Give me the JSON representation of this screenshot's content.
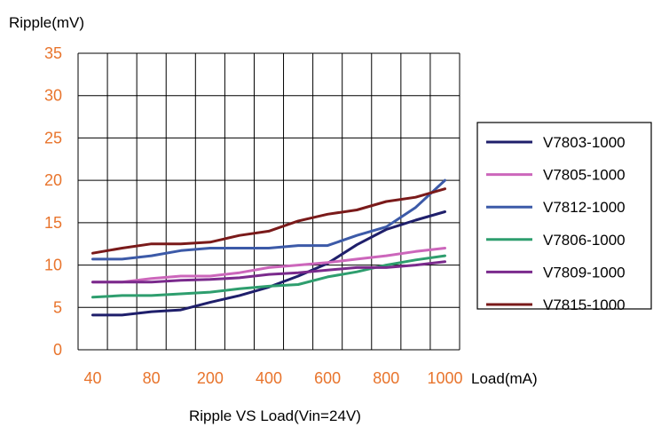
{
  "chart_data": {
    "type": "line",
    "title": "Ripple VS Load(Vin=24V)",
    "ylabel": "Ripple(mV)",
    "xlabel": "Load(mA)",
    "categories": [
      "40",
      "",
      "80",
      "",
      "200",
      "",
      "400",
      "",
      "600",
      "",
      "800",
      "",
      "1000"
    ],
    "yticks": [
      "0",
      "5",
      "10",
      "15",
      "20",
      "25",
      "30",
      "35"
    ],
    "ylim": [
      0,
      35
    ],
    "grid": true,
    "legend_position": "right",
    "tick_color": "#e8742c",
    "series": [
      {
        "name": "V7803-1000",
        "color": "#1f1f6b",
        "values": [
          4.1,
          4.1,
          4.5,
          4.7,
          5.6,
          6.4,
          7.4,
          8.7,
          10.2,
          12.4,
          14.2,
          15.3,
          16.3
        ]
      },
      {
        "name": "V7805-1000",
        "color": "#cc66bb",
        "values": [
          8.0,
          8.0,
          8.4,
          8.7,
          8.7,
          9.1,
          9.7,
          10.0,
          10.3,
          10.7,
          11.1,
          11.6,
          12.0
        ]
      },
      {
        "name": "V7812-1000",
        "color": "#3c5aa8",
        "values": [
          10.7,
          10.7,
          11.1,
          11.7,
          12.0,
          12.0,
          12.0,
          12.3,
          12.3,
          13.5,
          14.5,
          16.8,
          20.0
        ]
      },
      {
        "name": "V7806-1000",
        "color": "#2e9e6e",
        "values": [
          6.2,
          6.4,
          6.4,
          6.6,
          6.8,
          7.2,
          7.5,
          7.7,
          8.6,
          9.2,
          10.0,
          10.6,
          11.1
        ]
      },
      {
        "name": "V7809-1000",
        "color": "#7a2a8c",
        "values": [
          8.0,
          8.0,
          8.0,
          8.2,
          8.3,
          8.5,
          8.9,
          9.1,
          9.4,
          9.7,
          9.7,
          10.0,
          10.4
        ]
      },
      {
        "name": "V7815-1000",
        "color": "#7a1a1a",
        "values": [
          11.4,
          12.0,
          12.5,
          12.5,
          12.7,
          13.5,
          14.0,
          15.2,
          16.0,
          16.5,
          17.5,
          18.0,
          19.0
        ]
      }
    ]
  }
}
